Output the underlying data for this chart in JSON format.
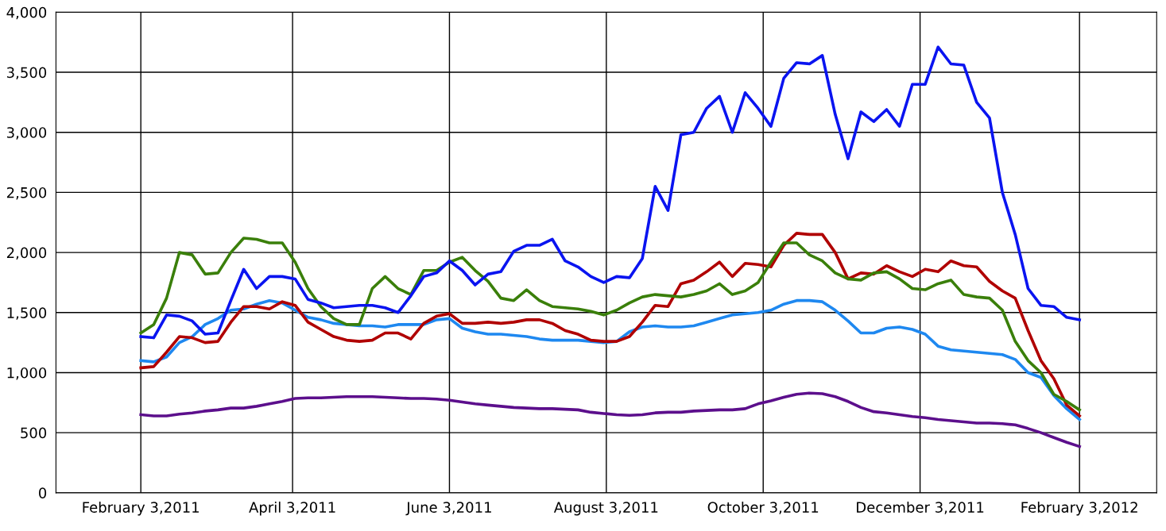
{
  "chart_data": {
    "type": "line",
    "x": [
      "2011-02-03",
      "2011-02-08",
      "2011-02-13",
      "2011-02-18",
      "2011-02-23",
      "2011-02-28",
      "2011-03-05",
      "2011-03-10",
      "2011-03-15",
      "2011-03-20",
      "2011-03-25",
      "2011-03-30",
      "2011-04-04",
      "2011-04-09",
      "2011-04-14",
      "2011-04-19",
      "2011-04-24",
      "2011-04-29",
      "2011-05-04",
      "2011-05-09",
      "2011-05-14",
      "2011-05-19",
      "2011-05-24",
      "2011-05-29",
      "2011-06-03",
      "2011-06-08",
      "2011-06-13",
      "2011-06-18",
      "2011-06-23",
      "2011-06-28",
      "2011-07-03",
      "2011-07-08",
      "2011-07-13",
      "2011-07-18",
      "2011-07-23",
      "2011-07-28",
      "2011-08-02",
      "2011-08-07",
      "2011-08-12",
      "2011-08-17",
      "2011-08-22",
      "2011-08-27",
      "2011-09-01",
      "2011-09-06",
      "2011-09-11",
      "2011-09-16",
      "2011-09-21",
      "2011-09-26",
      "2011-10-01",
      "2011-10-06",
      "2011-10-11",
      "2011-10-16",
      "2011-10-21",
      "2011-10-26",
      "2011-10-31",
      "2011-11-05",
      "2011-11-10",
      "2011-11-15",
      "2011-11-20",
      "2011-11-25",
      "2011-11-30",
      "2011-12-05",
      "2011-12-10",
      "2011-12-15",
      "2011-12-20",
      "2011-12-25",
      "2011-12-30",
      "2012-01-04",
      "2012-01-09",
      "2012-01-14",
      "2012-01-19",
      "2012-01-24",
      "2012-01-29",
      "2012-02-03"
    ],
    "series": [
      {
        "color": "#5c0f8c",
        "values": [
          650,
          640,
          640,
          655,
          665,
          680,
          690,
          705,
          705,
          720,
          740,
          760,
          785,
          790,
          790,
          795,
          800,
          800,
          800,
          795,
          790,
          785,
          785,
          780,
          770,
          755,
          740,
          730,
          720,
          710,
          705,
          700,
          700,
          695,
          690,
          670,
          660,
          650,
          645,
          650,
          665,
          670,
          670,
          680,
          685,
          690,
          690,
          700,
          740,
          765,
          795,
          820,
          830,
          825,
          800,
          760,
          710,
          675,
          665,
          650,
          635,
          625,
          610,
          600,
          590,
          580,
          580,
          575,
          565,
          535,
          500,
          460,
          420,
          385
        ]
      },
      {
        "color": "#1e88f0",
        "values": [
          1100,
          1090,
          1130,
          1250,
          1300,
          1400,
          1450,
          1520,
          1530,
          1570,
          1600,
          1580,
          1520,
          1460,
          1440,
          1410,
          1400,
          1390,
          1390,
          1380,
          1400,
          1400,
          1400,
          1440,
          1450,
          1370,
          1340,
          1320,
          1320,
          1310,
          1300,
          1280,
          1270,
          1270,
          1270,
          1260,
          1250,
          1260,
          1340,
          1380,
          1390,
          1380,
          1380,
          1390,
          1420,
          1450,
          1480,
          1490,
          1500,
          1520,
          1570,
          1600,
          1600,
          1590,
          1520,
          1430,
          1330,
          1330,
          1370,
          1380,
          1360,
          1320,
          1220,
          1190,
          1180,
          1170,
          1160,
          1150,
          1110,
          1000,
          960,
          810,
          700,
          610
        ]
      },
      {
        "color": "#b00000",
        "values": [
          1040,
          1050,
          1170,
          1300,
          1290,
          1250,
          1260,
          1420,
          1550,
          1550,
          1530,
          1590,
          1560,
          1420,
          1360,
          1300,
          1270,
          1260,
          1270,
          1330,
          1330,
          1280,
          1410,
          1470,
          1490,
          1410,
          1410,
          1420,
          1410,
          1420,
          1440,
          1440,
          1410,
          1350,
          1320,
          1270,
          1260,
          1260,
          1300,
          1420,
          1560,
          1550,
          1740,
          1770,
          1840,
          1920,
          1800,
          1910,
          1900,
          1880,
          2060,
          2160,
          2150,
          2150,
          2000,
          1780,
          1830,
          1820,
          1890,
          1840,
          1800,
          1860,
          1840,
          1930,
          1890,
          1880,
          1760,
          1680,
          1620,
          1350,
          1100,
          950,
          730,
          640
        ]
      },
      {
        "color": "#3a7f0a",
        "values": [
          1330,
          1400,
          1620,
          2000,
          1980,
          1820,
          1830,
          2000,
          2120,
          2110,
          2080,
          2080,
          1920,
          1700,
          1550,
          1450,
          1400,
          1400,
          1700,
          1800,
          1700,
          1650,
          1850,
          1850,
          1920,
          1960,
          1850,
          1760,
          1620,
          1600,
          1690,
          1600,
          1550,
          1540,
          1530,
          1510,
          1480,
          1520,
          1580,
          1630,
          1650,
          1640,
          1630,
          1650,
          1680,
          1740,
          1650,
          1680,
          1750,
          1920,
          2080,
          2080,
          1980,
          1930,
          1830,
          1780,
          1770,
          1830,
          1840,
          1780,
          1700,
          1690,
          1740,
          1770,
          1650,
          1630,
          1620,
          1520,
          1260,
          1100,
          1000,
          820,
          760,
          690
        ]
      },
      {
        "color": "#0a14f0",
        "values": [
          1300,
          1290,
          1480,
          1470,
          1430,
          1320,
          1330,
          1600,
          1860,
          1700,
          1800,
          1800,
          1780,
          1610,
          1580,
          1540,
          1550,
          1560,
          1560,
          1540,
          1500,
          1640,
          1800,
          1830,
          1930,
          1850,
          1730,
          1820,
          1840,
          2010,
          2060,
          2060,
          2110,
          1930,
          1880,
          1800,
          1750,
          1800,
          1790,
          1950,
          2550,
          2350,
          2980,
          3000,
          3200,
          3300,
          3000,
          3330,
          3200,
          3050,
          3450,
          3580,
          3570,
          3640,
          3150,
          2780,
          3170,
          3090,
          3190,
          3050,
          3400,
          3400,
          3710,
          3570,
          3560,
          3250,
          3120,
          2500,
          2150,
          1700,
          1560,
          1550,
          1460,
          1440
        ]
      }
    ],
    "xlim": [
      "2011-01-01",
      "2012-03-04"
    ],
    "xticks": [
      {
        "value": "2011-02-03",
        "label": "February 3,2011"
      },
      {
        "value": "2011-04-03",
        "label": "April 3,2011"
      },
      {
        "value": "2011-06-03",
        "label": "June 3,2011"
      },
      {
        "value": "2011-08-03",
        "label": "August 3,2011"
      },
      {
        "value": "2011-10-03",
        "label": "October 3,2011"
      },
      {
        "value": "2011-12-03",
        "label": "December 3,2011"
      },
      {
        "value": "2012-02-03",
        "label": "February 3,2012"
      }
    ],
    "ylim": [
      0,
      4000
    ],
    "yticks": [
      0,
      500,
      {
        "value": 1000,
        "label": "1,000"
      },
      {
        "value": 1500,
        "label": "1,500"
      },
      {
        "value": 2000,
        "label": "2,000"
      },
      {
        "value": 2500,
        "label": "2,500"
      },
      {
        "value": 3000,
        "label": "3,000"
      },
      {
        "value": 3500,
        "label": "3,500"
      },
      {
        "value": 4000,
        "label": "4,000"
      }
    ],
    "grid": true,
    "marker": "none",
    "line_style": "solid"
  }
}
